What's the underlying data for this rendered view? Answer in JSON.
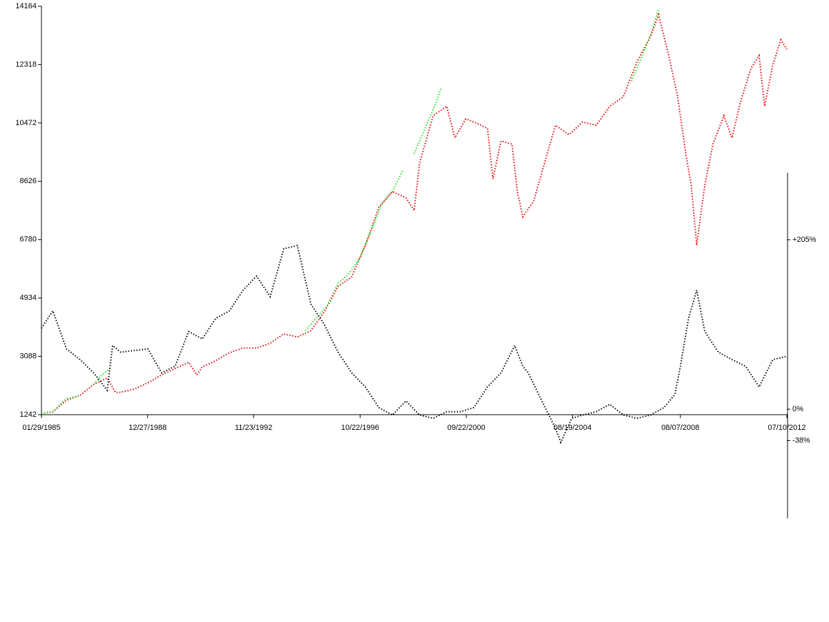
{
  "chart_data": {
    "type": "line",
    "xlim": [
      1985.08,
      2012.52
    ],
    "xticks": [
      {
        "value": 1985.08,
        "label": "01/29/1985"
      },
      {
        "value": 1988.99,
        "label": "12/27/1988"
      },
      {
        "value": 1992.89,
        "label": "11/23/1992"
      },
      {
        "value": 1996.81,
        "label": "10/22/1996"
      },
      {
        "value": 2000.72,
        "label": "09/22/2000"
      },
      {
        "value": 2004.63,
        "label": "08/19/2004"
      },
      {
        "value": 2008.6,
        "label": "08/07/2008"
      },
      {
        "value": 2012.52,
        "label": "07/10/2012"
      }
    ],
    "ylim": [
      1242,
      14164
    ],
    "yticks": [
      1242,
      3088,
      4934,
      6780,
      8626,
      10472,
      12318,
      14164
    ],
    "y2lim": [
      -132,
      286
    ],
    "y2ticks": [
      {
        "value": 205,
        "label": "+205%"
      },
      {
        "value": 0,
        "label": "0%"
      },
      {
        "value": -38,
        "label": "-38%"
      }
    ],
    "series": [
      {
        "color": "#e00000",
        "x": [
          1985.08,
          1985.5,
          1986.0,
          1986.5,
          1987.0,
          1987.5,
          1987.8,
          1988.0,
          1988.5,
          1989.0,
          1989.5,
          1990.0,
          1990.5,
          1990.8,
          1991.0,
          1991.5,
          1992.0,
          1992.5,
          1993.0,
          1993.5,
          1994.0,
          1994.5,
          1995.0,
          1995.5,
          1996.0,
          1996.5,
          1997.0,
          1997.5,
          1998.0,
          1998.5,
          1998.8,
          1999.0,
          1999.5,
          2000.0,
          2000.3,
          2000.7,
          2001.0,
          2001.5,
          2001.7,
          2002.0,
          2002.4,
          2002.6,
          2002.8,
          2003.2,
          2003.6,
          2004.0,
          2004.5,
          2005.0,
          2005.5,
          2006.0,
          2006.5,
          2007.0,
          2007.5,
          2007.8,
          2008.2,
          2008.5,
          2008.8,
          2009.0,
          2009.2,
          2009.5,
          2009.8,
          2010.2,
          2010.5,
          2010.8,
          2011.2,
          2011.5,
          2011.7,
          2012.0,
          2012.3,
          2012.52
        ],
        "values": [
          1280,
          1330,
          1700,
          1850,
          2200,
          2400,
          1950,
          1950,
          2050,
          2250,
          2500,
          2700,
          2900,
          2500,
          2750,
          2950,
          3200,
          3350,
          3350,
          3500,
          3800,
          3700,
          3900,
          4500,
          5300,
          5600,
          6600,
          7800,
          8300,
          8100,
          7700,
          9200,
          10700,
          11000,
          10000,
          10600,
          10500,
          10300,
          8700,
          9900,
          9800,
          8300,
          7500,
          8000,
          9200,
          10400,
          10100,
          10500,
          10400,
          11000,
          11300,
          12400,
          13200,
          13900,
          12500,
          11300,
          9500,
          8500,
          6600,
          8500,
          9800,
          10700,
          10000,
          11100,
          12200,
          12600,
          11000,
          12300,
          13100,
          12800
        ]
      },
      {
        "color": "#22dd22",
        "x": [
          1985.08,
          1985.5,
          1986.0,
          1986.5,
          1986.75,
          1987.0,
          1987.3,
          1987.6,
          1991.0,
          1994.8,
          1995.2,
          1995.6,
          1996.0,
          1996.4,
          1996.8,
          1997.2,
          1997.6,
          1998.0,
          1998.4,
          1998.6,
          1998.8,
          1999.2,
          1999.6,
          1999.8,
          2003.0,
          2006.8,
          2007.2,
          2007.6,
          2007.8
        ],
        "values": [
          1280,
          1350,
          1750,
          1850,
          null,
          2200,
          2500,
          2700,
          null,
          3900,
          4300,
          4700,
          5400,
          5700,
          6200,
          7000,
          7900,
          8300,
          9000,
          null,
          9500,
          10300,
          11100,
          11600,
          null,
          11800,
          12600,
          13500,
          14100
        ]
      },
      {
        "color": "#000000",
        "axis": "y2",
        "x": [
          1985.08,
          1985.5,
          1986.0,
          1986.5,
          1987.0,
          1987.5,
          1987.7,
          1988.0,
          1989.0,
          1989.5,
          1990.0,
          1990.5,
          1991.0,
          1991.5,
          1992.0,
          1992.5,
          1993.0,
          1993.5,
          1994.0,
          1994.5,
          1995.0,
          1995.5,
          1996.0,
          1996.5,
          1997.0,
          1997.5,
          1998.0,
          1998.5,
          1999.0,
          1999.5,
          2000.0,
          2000.5,
          2001.0,
          2001.5,
          2002.0,
          2002.5,
          2002.8,
          2003.0,
          2003.5,
          2004.0,
          2004.2,
          2004.6,
          2005.0,
          2005.5,
          2006.0,
          2006.5,
          2007.0,
          2007.5,
          2008.0,
          2008.4,
          2008.6,
          2008.9,
          2009.2,
          2009.5,
          2010.0,
          2010.5,
          2011.0,
          2011.5,
          2012.0,
          2012.52
        ],
        "values": [
          98,
          119,
          73,
          60,
          44,
          23,
          77,
          69,
          73,
          44,
          52,
          94,
          85,
          110,
          119,
          144,
          161,
          136,
          194,
          198,
          127,
          102,
          69,
          44,
          27,
          2,
          -7,
          10,
          -7,
          -11,
          -3,
          -3,
          2,
          27,
          44,
          77,
          52,
          44,
          10,
          -23,
          -40,
          -11,
          -7,
          -3,
          6,
          -7,
          -11,
          -7,
          2,
          18,
          52,
          110,
          144,
          94,
          69,
          60,
          52,
          27,
          60,
          64
        ]
      }
    ]
  }
}
